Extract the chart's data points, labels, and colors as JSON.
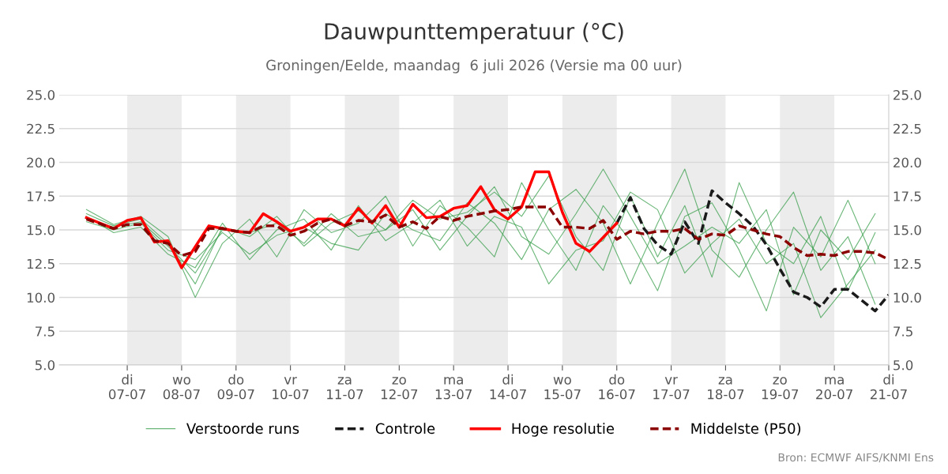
{
  "chart_data": {
    "type": "line",
    "title": "Dauwpunttemperatuur (°C)",
    "subtitle": "Groningen/Eelde, maandag  6 juli 2026 (Versie ma 00 uur)",
    "xlim": [
      "2026-07-05T18:00",
      "2026-07-21T00:00"
    ],
    "xticks": [
      {
        "value": "2026-07-07",
        "label": "di\n07-07"
      },
      {
        "value": "2026-07-08",
        "label": "wo\n08-07"
      },
      {
        "value": "2026-07-09",
        "label": "do\n09-07"
      },
      {
        "value": "2026-07-10",
        "label": "vr\n10-07"
      },
      {
        "value": "2026-07-11",
        "label": "za\n11-07"
      },
      {
        "value": "2026-07-12",
        "label": "zo\n12-07"
      },
      {
        "value": "2026-07-13",
        "label": "ma\n13-07"
      },
      {
        "value": "2026-07-14",
        "label": "di\n14-07"
      },
      {
        "value": "2026-07-15",
        "label": "wo\n15-07"
      },
      {
        "value": "2026-07-16",
        "label": "do\n16-07"
      },
      {
        "value": "2026-07-17",
        "label": "vr\n17-07"
      },
      {
        "value": "2026-07-18",
        "label": "za\n18-07"
      },
      {
        "value": "2026-07-19",
        "label": "zo\n19-07"
      },
      {
        "value": "2026-07-20",
        "label": "ma\n20-07"
      },
      {
        "value": "2026-07-21",
        "label": "di\n21-07"
      }
    ],
    "ylim": [
      5,
      25
    ],
    "yticks": [
      {
        "value": 5,
        "label": "5.0"
      },
      {
        "value": 7.5,
        "label": "7.5"
      },
      {
        "value": 10,
        "label": "10.0"
      },
      {
        "value": 12.5,
        "label": "12.5"
      },
      {
        "value": 15,
        "label": "15.0"
      },
      {
        "value": 17.5,
        "label": "17.5"
      },
      {
        "value": 20,
        "label": "20.0"
      },
      {
        "value": 22.5,
        "label": "22.5"
      },
      {
        "value": 25,
        "label": "25.0"
      }
    ],
    "y2lim": [
      5,
      25
    ],
    "y2ticks": [
      {
        "value": 5,
        "label": "5.0"
      },
      {
        "value": 7.5,
        "label": "7.5"
      },
      {
        "value": 10,
        "label": "10.0"
      },
      {
        "value": 12.5,
        "label": "12.5"
      },
      {
        "value": 15,
        "label": "15.0"
      },
      {
        "value": 17.5,
        "label": "17.5"
      },
      {
        "value": 20,
        "label": "20.0"
      },
      {
        "value": 22.5,
        "label": "22.5"
      },
      {
        "value": 25,
        "label": "25.0"
      }
    ],
    "grid": "y",
    "legend": "bottom",
    "bands": [
      {
        "axis": "x",
        "from": "2026-07-07",
        "to": "2026-07-08",
        "color": "#ececec"
      },
      {
        "axis": "x",
        "from": "2026-07-09",
        "to": "2026-07-10",
        "color": "#ececec"
      },
      {
        "axis": "x",
        "from": "2026-07-11",
        "to": "2026-07-12",
        "color": "#ececec"
      },
      {
        "axis": "x",
        "from": "2026-07-13",
        "to": "2026-07-14",
        "color": "#ececec"
      },
      {
        "axis": "x",
        "from": "2026-07-15",
        "to": "2026-07-16",
        "color": "#ececec"
      },
      {
        "axis": "x",
        "from": "2026-07-17",
        "to": "2026-07-18",
        "color": "#ececec"
      },
      {
        "axis": "x",
        "from": "2026-07-19",
        "to": "2026-07-20",
        "color": "#ececec"
      }
    ],
    "annotations": [
      "Bron: ECMWF AIFS/KNMI Ens"
    ],
    "series": [
      {
        "name": "Verstoorde runs",
        "color": "#3a9f4c",
        "line_style": "solid",
        "x": [
          "2026-07-06T06:00",
          "2026-07-06T18:00",
          "2026-07-07T06:00",
          "2026-07-07T18:00",
          "2026-07-08T06:00",
          "2026-07-08T18:00",
          "2026-07-09T06:00",
          "2026-07-09T18:00",
          "2026-07-10T06:00",
          "2026-07-10T18:00",
          "2026-07-11T06:00",
          "2026-07-11T18:00",
          "2026-07-12T06:00",
          "2026-07-12T18:00",
          "2026-07-13T06:00",
          "2026-07-13T18:00",
          "2026-07-14T06:00",
          "2026-07-14T18:00",
          "2026-07-15T06:00",
          "2026-07-15T18:00",
          "2026-07-16T06:00",
          "2026-07-16T18:00",
          "2026-07-17T06:00",
          "2026-07-17T18:00",
          "2026-07-18T06:00",
          "2026-07-18T18:00",
          "2026-07-19T06:00",
          "2026-07-19T18:00",
          "2026-07-20T06:00",
          "2026-07-20T18:00"
        ],
        "values": [
          16.2,
          15.3,
          15.8,
          14.0,
          11.0,
          15.2,
          14.5,
          16.0,
          13.8,
          15.5,
          16.4,
          15.0,
          17.2,
          15.8,
          16.3,
          17.8,
          16.0,
          19.0,
          14.5,
          12.0,
          17.5,
          13.0,
          16.8,
          11.5,
          18.5,
          14.0,
          12.5,
          16.0,
          10.5,
          14.8
        ]
      },
      {
        "color": "#3a9f4c",
        "line_style": "solid",
        "x": [
          "2026-07-06T06:00",
          "2026-07-06T18:00",
          "2026-07-07T06:00",
          "2026-07-07T18:00",
          "2026-07-08T06:00",
          "2026-07-08T18:00",
          "2026-07-09T06:00",
          "2026-07-09T18:00",
          "2026-07-10T06:00",
          "2026-07-10T18:00",
          "2026-07-11T06:00",
          "2026-07-11T18:00",
          "2026-07-12T06:00",
          "2026-07-12T18:00",
          "2026-07-13T06:00",
          "2026-07-13T18:00",
          "2026-07-14T06:00",
          "2026-07-14T18:00",
          "2026-07-15T06:00",
          "2026-07-15T18:00",
          "2026-07-16T06:00",
          "2026-07-16T18:00",
          "2026-07-17T06:00",
          "2026-07-17T18:00",
          "2026-07-18T06:00",
          "2026-07-18T18:00",
          "2026-07-19T06:00",
          "2026-07-19T18:00",
          "2026-07-20T06:00",
          "2026-07-20T18:00"
        ],
        "values": [
          15.6,
          15.0,
          15.5,
          13.5,
          12.8,
          14.8,
          13.2,
          14.6,
          15.2,
          14.0,
          13.5,
          16.2,
          15.0,
          14.2,
          17.0,
          15.5,
          12.8,
          16.5,
          18.0,
          15.5,
          11.0,
          15.5,
          19.5,
          13.5,
          11.5,
          15.0,
          17.8,
          12.0,
          14.5,
          9.5
        ]
      },
      {
        "color": "#3a9f4c",
        "line_style": "solid",
        "x": [
          "2026-07-06T06:00",
          "2026-07-06T18:00",
          "2026-07-07T06:00",
          "2026-07-07T18:00",
          "2026-07-08T06:00",
          "2026-07-08T18:00",
          "2026-07-09T06:00",
          "2026-07-09T18:00",
          "2026-07-10T06:00",
          "2026-07-10T18:00",
          "2026-07-11T06:00",
          "2026-07-11T18:00",
          "2026-07-12T06:00",
          "2026-07-12T18:00",
          "2026-07-13T06:00",
          "2026-07-13T18:00",
          "2026-07-14T06:00",
          "2026-07-14T18:00",
          "2026-07-15T06:00",
          "2026-07-15T18:00",
          "2026-07-16T06:00",
          "2026-07-16T18:00",
          "2026-07-17T06:00",
          "2026-07-17T18:00",
          "2026-07-18T06:00",
          "2026-07-18T18:00",
          "2026-07-19T06:00",
          "2026-07-19T18:00",
          "2026-07-20T06:00",
          "2026-07-20T18:00"
        ],
        "values": [
          16.5,
          15.4,
          16.0,
          14.5,
          10.0,
          14.0,
          15.8,
          13.0,
          16.5,
          14.8,
          15.5,
          17.5,
          13.8,
          16.8,
          15.2,
          13.0,
          18.5,
          15.0,
          12.0,
          16.8,
          14.2,
          10.5,
          16.0,
          17.0,
          13.5,
          9.0,
          15.2,
          13.0,
          17.2,
          12.5
        ]
      },
      {
        "color": "#3a9f4c",
        "line_style": "solid",
        "x": [
          "2026-07-06T06:00",
          "2026-07-06T18:00",
          "2026-07-07T06:00",
          "2026-07-07T18:00",
          "2026-07-08T06:00",
          "2026-07-08T18:00",
          "2026-07-09T06:00",
          "2026-07-09T18:00",
          "2026-07-10T06:00",
          "2026-07-10T18:00",
          "2026-07-11T06:00",
          "2026-07-11T18:00",
          "2026-07-12T06:00",
          "2026-07-12T18:00",
          "2026-07-13T06:00",
          "2026-07-13T18:00",
          "2026-07-14T06:00",
          "2026-07-14T18:00",
          "2026-07-15T06:00",
          "2026-07-15T18:00",
          "2026-07-16T06:00",
          "2026-07-16T18:00",
          "2026-07-17T06:00",
          "2026-07-17T18:00",
          "2026-07-18T06:00",
          "2026-07-18T18:00",
          "2026-07-19T06:00",
          "2026-07-19T18:00",
          "2026-07-20T06:00",
          "2026-07-20T18:00"
        ],
        "values": [
          15.8,
          15.2,
          15.6,
          13.8,
          11.8,
          15.0,
          14.8,
          15.5,
          14.0,
          16.2,
          14.5,
          15.0,
          16.5,
          13.5,
          16.0,
          18.2,
          14.5,
          13.2,
          16.2,
          19.5,
          16.0,
          12.5,
          13.8,
          15.2,
          14.0,
          16.5,
          10.2,
          15.0,
          12.8,
          16.2
        ]
      },
      {
        "color": "#3a9f4c",
        "line_style": "solid",
        "x": [
          "2026-07-06T06:00",
          "2026-07-06T18:00",
          "2026-07-07T06:00",
          "2026-07-07T18:00",
          "2026-07-08T06:00",
          "2026-07-08T18:00",
          "2026-07-09T06:00",
          "2026-07-09T18:00",
          "2026-07-10T06:00",
          "2026-07-10T18:00",
          "2026-07-11T06:00",
          "2026-07-11T18:00",
          "2026-07-12T06:00",
          "2026-07-12T18:00",
          "2026-07-13T06:00",
          "2026-07-13T18:00",
          "2026-07-14T06:00",
          "2026-07-14T18:00",
          "2026-07-15T06:00",
          "2026-07-15T18:00",
          "2026-07-16T06:00",
          "2026-07-16T18:00",
          "2026-07-17T06:00",
          "2026-07-17T18:00",
          "2026-07-18T06:00",
          "2026-07-18T18:00",
          "2026-07-19T06:00",
          "2026-07-19T18:00",
          "2026-07-20T06:00",
          "2026-07-20T18:00"
        ],
        "values": [
          16.0,
          14.8,
          15.2,
          13.2,
          12.2,
          15.5,
          12.8,
          15.0,
          15.8,
          13.5,
          16.8,
          14.2,
          15.5,
          17.2,
          13.8,
          16.0,
          15.2,
          11.0,
          13.5,
          14.2,
          17.8,
          16.5,
          11.8,
          14.0,
          15.8,
          12.5,
          14.0,
          8.5,
          11.0,
          13.5
        ]
      },
      {
        "name": "Controle",
        "color": "#1a1a1a",
        "line_style": "dashed",
        "x": [
          "2026-07-16T00:00",
          "2026-07-16T06:00",
          "2026-07-16T12:00",
          "2026-07-16T18:00",
          "2026-07-17T00:00",
          "2026-07-17T06:00",
          "2026-07-17T12:00",
          "2026-07-17T18:00",
          "2026-07-18T00:00",
          "2026-07-18T06:00",
          "2026-07-18T12:00",
          "2026-07-18T18:00",
          "2026-07-19T00:00",
          "2026-07-19T06:00",
          "2026-07-19T12:00",
          "2026-07-19T18:00",
          "2026-07-20T00:00",
          "2026-07-20T06:00",
          "2026-07-20T12:00",
          "2026-07-20T18:00",
          "2026-07-21T00:00"
        ],
        "values": [
          15.5,
          17.4,
          15.1,
          13.9,
          13.2,
          15.6,
          14.0,
          17.9,
          17.0,
          16.2,
          15.3,
          13.9,
          12.1,
          10.4,
          10.0,
          9.3,
          10.6,
          10.6,
          9.8,
          9.0,
          10.2
        ]
      },
      {
        "name": "Hoge resolutie",
        "color": "#ff0000",
        "line_style": "solid",
        "x": [
          "2026-07-06T06:00",
          "2026-07-06T18:00",
          "2026-07-07T00:00",
          "2026-07-07T06:00",
          "2026-07-07T12:00",
          "2026-07-07T18:00",
          "2026-07-08T00:00",
          "2026-07-08T12:00",
          "2026-07-08T18:00",
          "2026-07-09T00:00",
          "2026-07-09T06:00",
          "2026-07-09T12:00",
          "2026-07-09T18:00",
          "2026-07-10T00:00",
          "2026-07-10T06:00",
          "2026-07-10T12:00",
          "2026-07-10T18:00",
          "2026-07-11T00:00",
          "2026-07-11T06:00",
          "2026-07-11T12:00",
          "2026-07-11T18:00",
          "2026-07-12T00:00",
          "2026-07-12T06:00",
          "2026-07-12T12:00",
          "2026-07-12T18:00",
          "2026-07-13T00:00",
          "2026-07-13T06:00",
          "2026-07-13T12:00",
          "2026-07-13T18:00",
          "2026-07-14T00:00",
          "2026-07-14T06:00",
          "2026-07-14T12:00",
          "2026-07-14T18:00",
          "2026-07-15T00:00",
          "2026-07-15T06:00",
          "2026-07-15T12:00",
          "2026-07-16T00:00"
        ],
        "values": [
          15.9,
          15.1,
          15.7,
          15.9,
          14.1,
          14.2,
          12.2,
          15.3,
          15.1,
          14.9,
          14.8,
          16.2,
          15.6,
          14.9,
          15.2,
          15.8,
          15.8,
          15.3,
          16.6,
          15.5,
          16.8,
          15.2,
          16.9,
          15.9,
          16.0,
          16.6,
          16.8,
          18.2,
          16.5,
          15.8,
          16.7,
          19.3,
          19.3,
          16.3,
          14.0,
          13.4,
          15.5
        ]
      },
      {
        "name": "Middelste (P50)",
        "color": "#8b0000",
        "line_style": "dashed",
        "x": [
          "2026-07-06T06:00",
          "2026-07-06T18:00",
          "2026-07-07T00:00",
          "2026-07-07T06:00",
          "2026-07-07T12:00",
          "2026-07-07T18:00",
          "2026-07-08T00:00",
          "2026-07-08T06:00",
          "2026-07-08T12:00",
          "2026-07-08T18:00",
          "2026-07-09T00:00",
          "2026-07-09T06:00",
          "2026-07-09T12:00",
          "2026-07-09T18:00",
          "2026-07-10T00:00",
          "2026-07-10T06:00",
          "2026-07-10T12:00",
          "2026-07-10T18:00",
          "2026-07-11T00:00",
          "2026-07-11T06:00",
          "2026-07-11T12:00",
          "2026-07-11T18:00",
          "2026-07-12T00:00",
          "2026-07-12T06:00",
          "2026-07-12T12:00",
          "2026-07-12T18:00",
          "2026-07-13T00:00",
          "2026-07-13T06:00",
          "2026-07-13T12:00",
          "2026-07-13T18:00",
          "2026-07-14T00:00",
          "2026-07-14T06:00",
          "2026-07-14T12:00",
          "2026-07-14T18:00",
          "2026-07-15T00:00",
          "2026-07-15T06:00",
          "2026-07-15T12:00",
          "2026-07-15T18:00",
          "2026-07-16T00:00",
          "2026-07-16T06:00",
          "2026-07-16T12:00",
          "2026-07-16T18:00",
          "2026-07-17T00:00",
          "2026-07-17T06:00",
          "2026-07-17T12:00",
          "2026-07-17T18:00",
          "2026-07-18T00:00",
          "2026-07-18T06:00",
          "2026-07-18T12:00",
          "2026-07-18T18:00",
          "2026-07-19T00:00",
          "2026-07-19T06:00",
          "2026-07-19T12:00",
          "2026-07-19T18:00",
          "2026-07-20T00:00",
          "2026-07-20T06:00",
          "2026-07-20T12:00",
          "2026-07-20T18:00",
          "2026-07-21T00:00"
        ],
        "values": [
          15.8,
          15.1,
          15.4,
          15.4,
          14.2,
          14.0,
          13.1,
          13.4,
          15.1,
          15.1,
          14.9,
          14.8,
          15.3,
          15.3,
          14.6,
          14.9,
          15.5,
          15.8,
          15.3,
          15.7,
          15.6,
          16.1,
          15.2,
          15.6,
          15.1,
          16.0,
          15.7,
          16.0,
          16.2,
          16.4,
          16.5,
          16.7,
          16.7,
          16.7,
          15.2,
          15.2,
          15.1,
          15.7,
          14.3,
          14.9,
          14.7,
          14.9,
          14.9,
          15.1,
          14.3,
          14.7,
          14.6,
          15.3,
          15.0,
          14.7,
          14.5,
          13.7,
          13.1,
          13.2,
          13.1,
          13.4,
          13.4,
          13.3,
          12.8
        ]
      }
    ]
  }
}
